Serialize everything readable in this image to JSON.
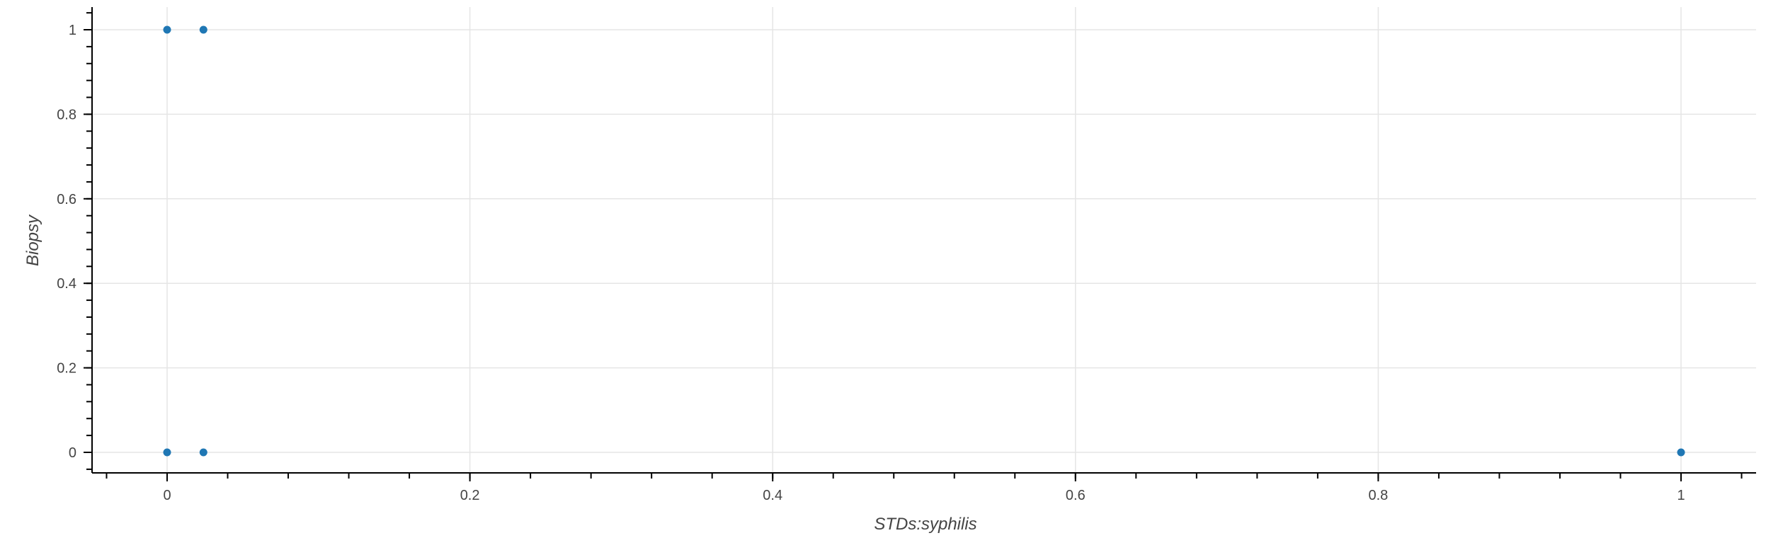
{
  "chart_data": {
    "type": "scatter",
    "title": "",
    "xlabel": "STDs:syphilis",
    "ylabel": "Biopsy",
    "xlim": [
      -0.05,
      1.05
    ],
    "ylim": [
      -0.05,
      1.05
    ],
    "x_ticks": [
      0,
      0.2,
      0.4,
      0.6,
      0.8,
      1
    ],
    "x_tick_labels": [
      "0",
      "0.2",
      "0.4",
      "0.6",
      "0.8",
      "1"
    ],
    "y_ticks": [
      0,
      0.2,
      0.4,
      0.6,
      0.8,
      1
    ],
    "y_tick_labels": [
      "0",
      "0.2",
      "0.4",
      "0.6",
      "0.8",
      "1"
    ],
    "grid": true,
    "points": [
      {
        "x": 0,
        "y": 1
      },
      {
        "x": 0.024,
        "y": 1
      },
      {
        "x": 0,
        "y": 0
      },
      {
        "x": 0.024,
        "y": 0
      },
      {
        "x": 1,
        "y": 0
      }
    ],
    "marker_color": "#1f77b4"
  }
}
